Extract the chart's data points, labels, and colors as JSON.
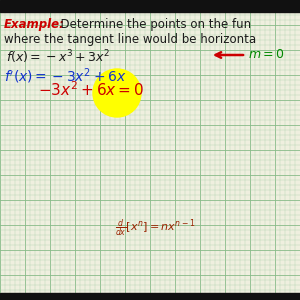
{
  "background_color": "#efefdf",
  "grid_minor_color": "#a8cfa8",
  "grid_major_color": "#88bb88",
  "bar_color": "#111111",
  "example_label": "Example:",
  "example_rest": "  Determine the points on the fun",
  "line2": "where the tangent line would be horizonta",
  "func_line": "$f(x) = -x^3 + 3x^2$",
  "deriv_line_blue": "$f'(x) = -3x^2 + 6x$",
  "set_zero_line": "$- 3x^2 + 6x = 0$",
  "power_rule": "$\\frac{d}{dx}[x^n] = nx^{n-1}$",
  "m_label": "$m = 0$",
  "text_color": "#1a1a1a",
  "example_color": "#cc0000",
  "deriv_color": "#1133cc",
  "set_zero_color": "#cc0000",
  "m_color": "#008800",
  "arrow_color": "#cc0000",
  "highlight_color": "#ffff00",
  "power_rule_color": "#992200",
  "figsize": [
    3.0,
    3.0
  ],
  "dpi": 100
}
